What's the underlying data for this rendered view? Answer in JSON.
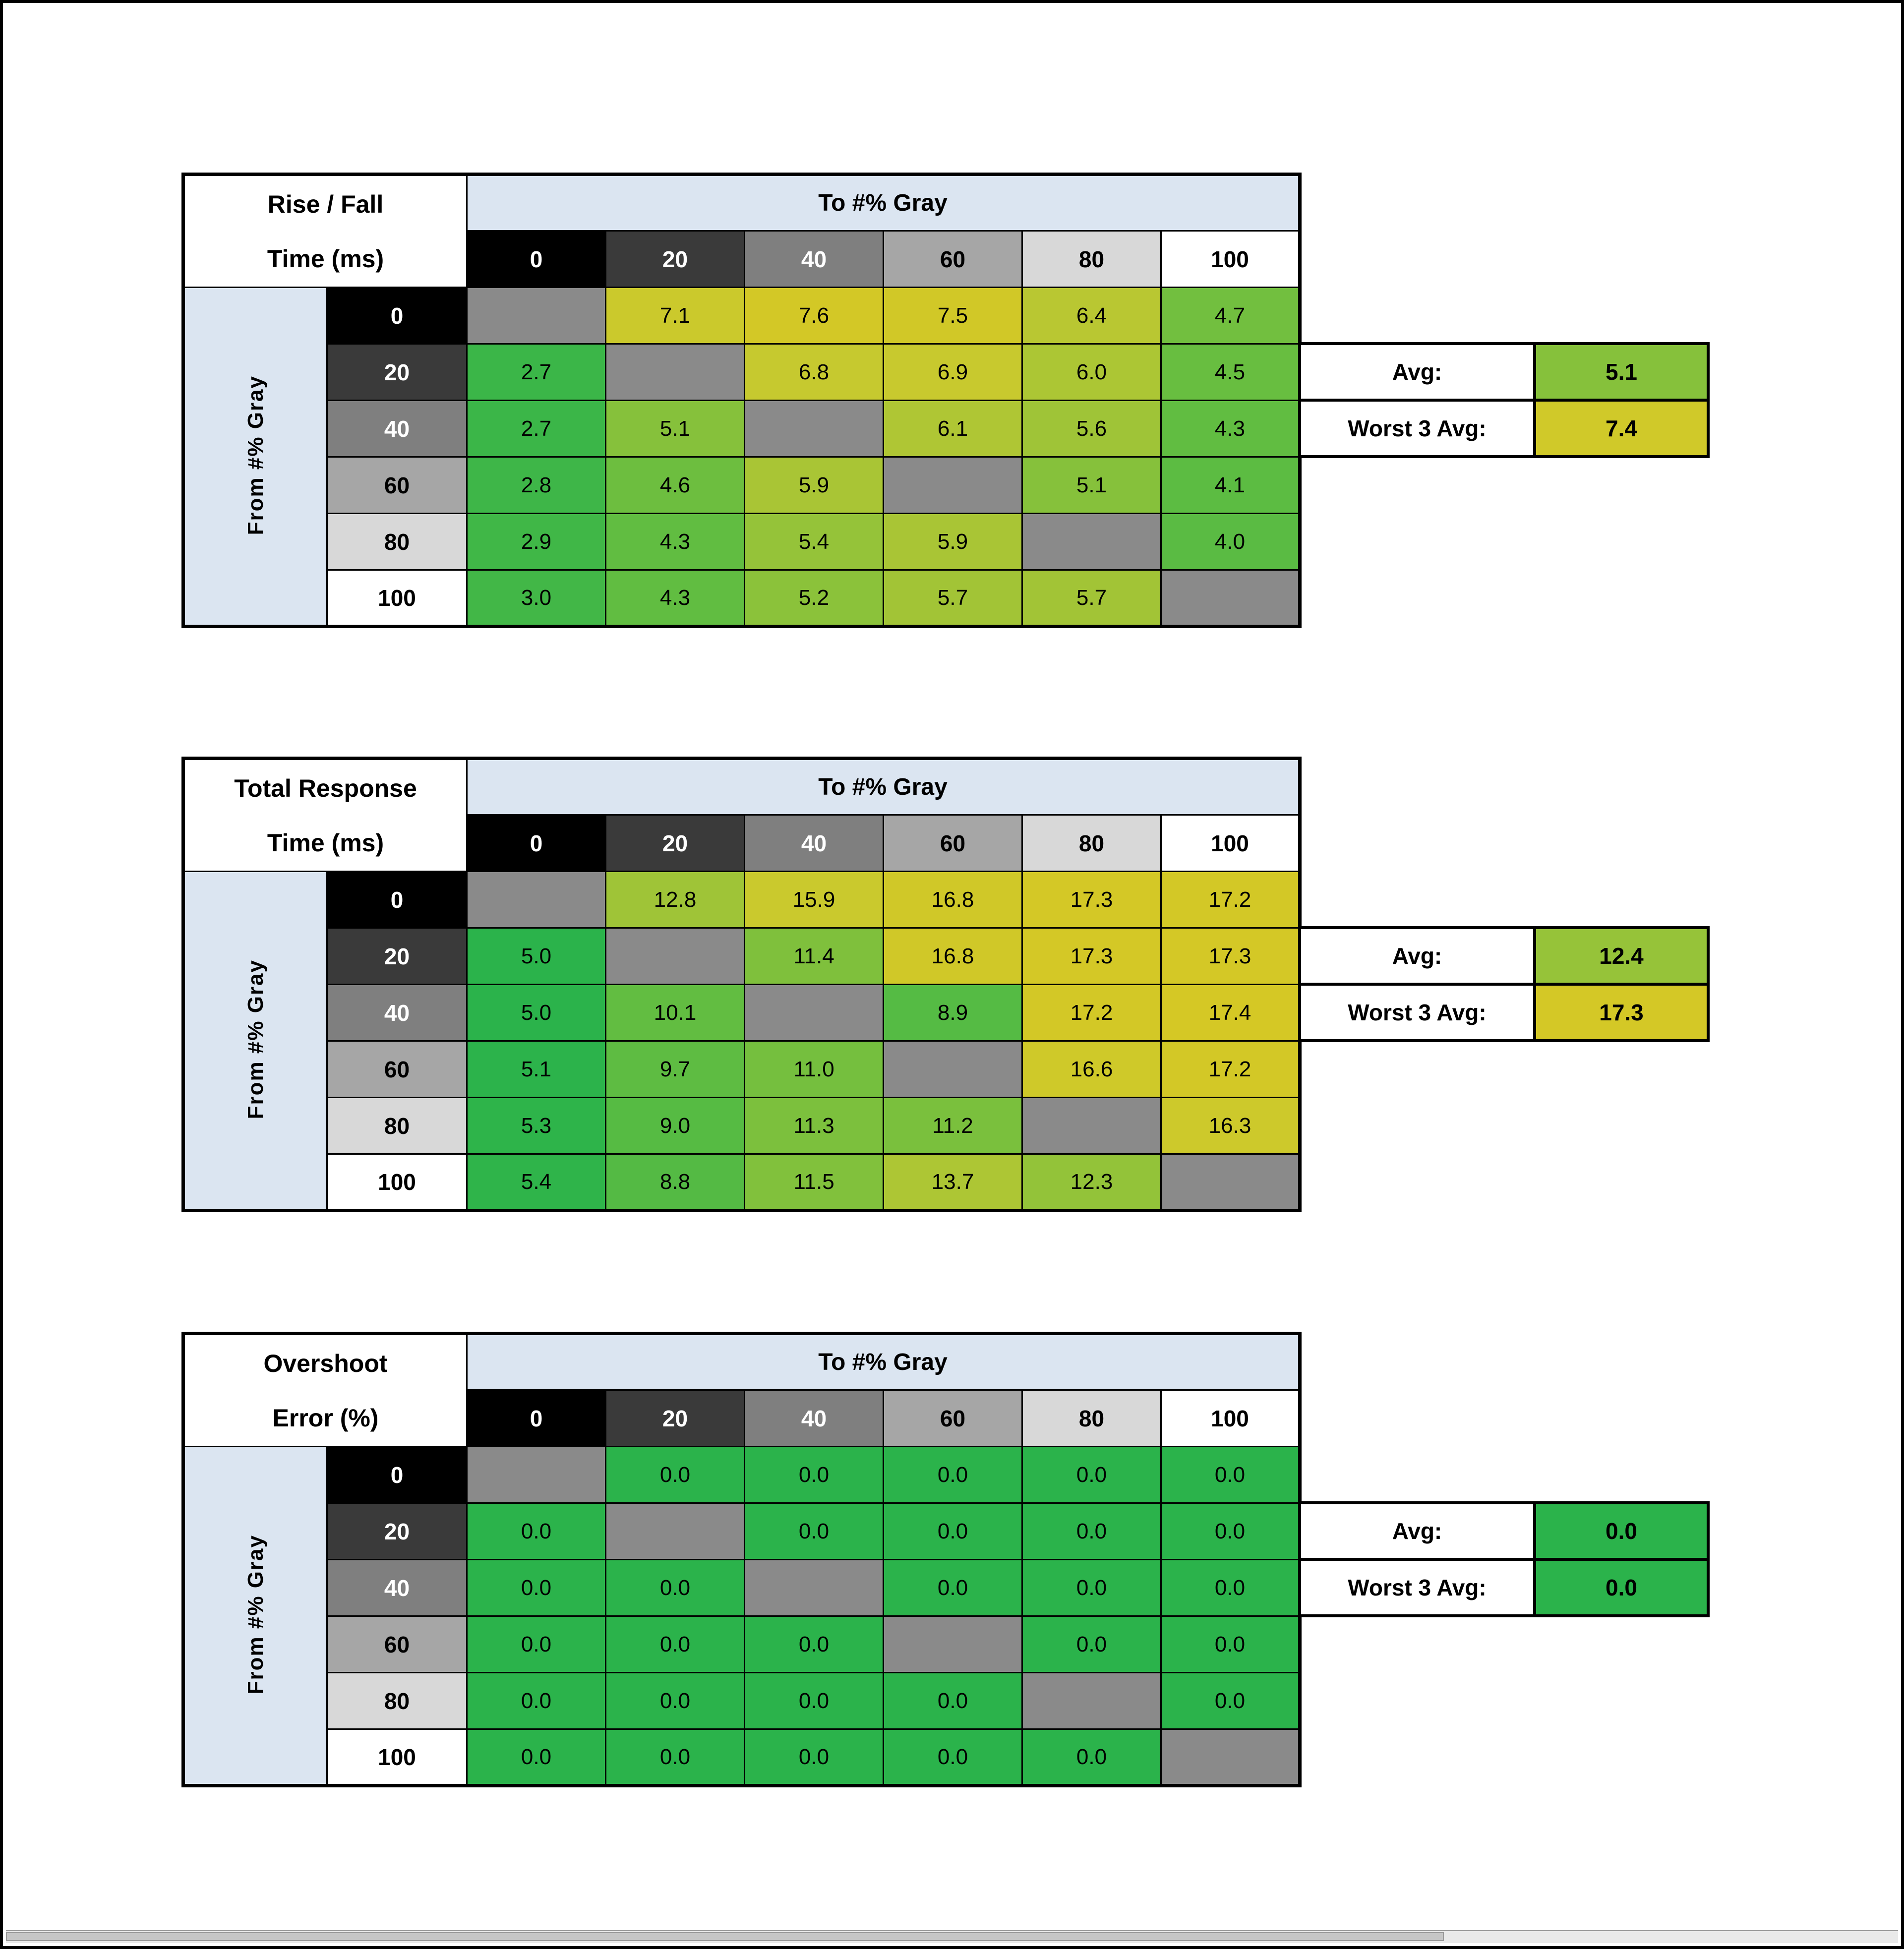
{
  "colors": {
    "header_band": "#dbe5f1",
    "diagonal_cell": "#8a8a8a",
    "grid_line": "#000000",
    "table_background": "#ffffff",
    "scale_stops": [
      [
        0,
        "#2bb34b"
      ],
      [
        0.4,
        "#63bd41"
      ],
      [
        0.6,
        "#9fc437"
      ],
      [
        0.8,
        "#c6c92f"
      ],
      [
        1,
        "#d9c822"
      ]
    ]
  },
  "gray_scale": [
    {
      "label": "0",
      "bg": "#000000",
      "fg": "#ffffff"
    },
    {
      "label": "20",
      "bg": "#3a3a3a",
      "fg": "#ffffff"
    },
    {
      "label": "40",
      "bg": "#7f7f7f",
      "fg": "#ffffff"
    },
    {
      "label": "60",
      "bg": "#a6a6a6",
      "fg": "#000000"
    },
    {
      "label": "80",
      "bg": "#d8d8d8",
      "fg": "#000000"
    },
    {
      "label": "100",
      "bg": "#ffffff",
      "fg": "#000000"
    }
  ],
  "chart_data": [
    {
      "type": "heatmap",
      "title_line1": "Rise / Fall",
      "title_line2": "Time (ms)",
      "x_axis_label": "To #% Gray",
      "y_axis_label": "From #% Gray",
      "columns": [
        "0",
        "20",
        "40",
        "60",
        "80",
        "100"
      ],
      "row_labels": [
        "0",
        "20",
        "40",
        "60",
        "80",
        "100"
      ],
      "rows": [
        [
          null,
          "7.1",
          "7.6",
          "7.5",
          "6.4",
          "4.7"
        ],
        [
          "2.7",
          null,
          "6.8",
          "6.9",
          "6.0",
          "4.5"
        ],
        [
          "2.7",
          "5.1",
          null,
          "6.1",
          "5.6",
          "4.3"
        ],
        [
          "2.8",
          "4.6",
          "5.9",
          null,
          "5.1",
          "4.1"
        ],
        [
          "2.9",
          "4.3",
          "5.4",
          "5.9",
          null,
          "4.0"
        ],
        [
          "3.0",
          "4.3",
          "5.2",
          "5.7",
          "5.7",
          null
        ]
      ],
      "summary": {
        "avg_label": "Avg:",
        "avg_value": "5.1",
        "worst_label": "Worst 3 Avg:",
        "worst_value": "7.4"
      },
      "color_scale": {
        "min": 2,
        "max": 8
      }
    },
    {
      "type": "heatmap",
      "title_line1": "Total Response",
      "title_line2": "Time (ms)",
      "x_axis_label": "To #% Gray",
      "y_axis_label": "From #% Gray",
      "columns": [
        "0",
        "20",
        "40",
        "60",
        "80",
        "100"
      ],
      "row_labels": [
        "0",
        "20",
        "40",
        "60",
        "80",
        "100"
      ],
      "rows": [
        [
          null,
          "12.8",
          "15.9",
          "16.8",
          "17.3",
          "17.2"
        ],
        [
          "5.0",
          null,
          "11.4",
          "16.8",
          "17.3",
          "17.3"
        ],
        [
          "5.0",
          "10.1",
          null,
          "8.9",
          "17.2",
          "17.4"
        ],
        [
          "5.1",
          "9.7",
          "11.0",
          null,
          "16.6",
          "17.2"
        ],
        [
          "5.3",
          "9.0",
          "11.3",
          "11.2",
          null,
          "16.3"
        ],
        [
          "5.4",
          "8.8",
          "11.5",
          "13.7",
          "12.3",
          null
        ]
      ],
      "summary": {
        "avg_label": "Avg:",
        "avg_value": "12.4",
        "worst_label": "Worst 3 Avg:",
        "worst_value": "17.3"
      },
      "color_scale": {
        "min": 5,
        "max": 18
      }
    },
    {
      "type": "heatmap",
      "title_line1": "Overshoot",
      "title_line2": "Error (%)",
      "x_axis_label": "To #% Gray",
      "y_axis_label": "From #% Gray",
      "columns": [
        "0",
        "20",
        "40",
        "60",
        "80",
        "100"
      ],
      "row_labels": [
        "0",
        "20",
        "40",
        "60",
        "80",
        "100"
      ],
      "rows": [
        [
          null,
          "0.0",
          "0.0",
          "0.0",
          "0.0",
          "0.0"
        ],
        [
          "0.0",
          null,
          "0.0",
          "0.0",
          "0.0",
          "0.0"
        ],
        [
          "0.0",
          "0.0",
          null,
          "0.0",
          "0.0",
          "0.0"
        ],
        [
          "0.0",
          "0.0",
          "0.0",
          null,
          "0.0",
          "0.0"
        ],
        [
          "0.0",
          "0.0",
          "0.0",
          "0.0",
          null,
          "0.0"
        ],
        [
          "0.0",
          "0.0",
          "0.0",
          "0.0",
          "0.0",
          null
        ]
      ],
      "summary": {
        "avg_label": "Avg:",
        "avg_value": "0.0",
        "worst_label": "Worst 3 Avg:",
        "worst_value": "0.0"
      },
      "color_scale": {
        "min": 0,
        "max": 1
      }
    }
  ]
}
